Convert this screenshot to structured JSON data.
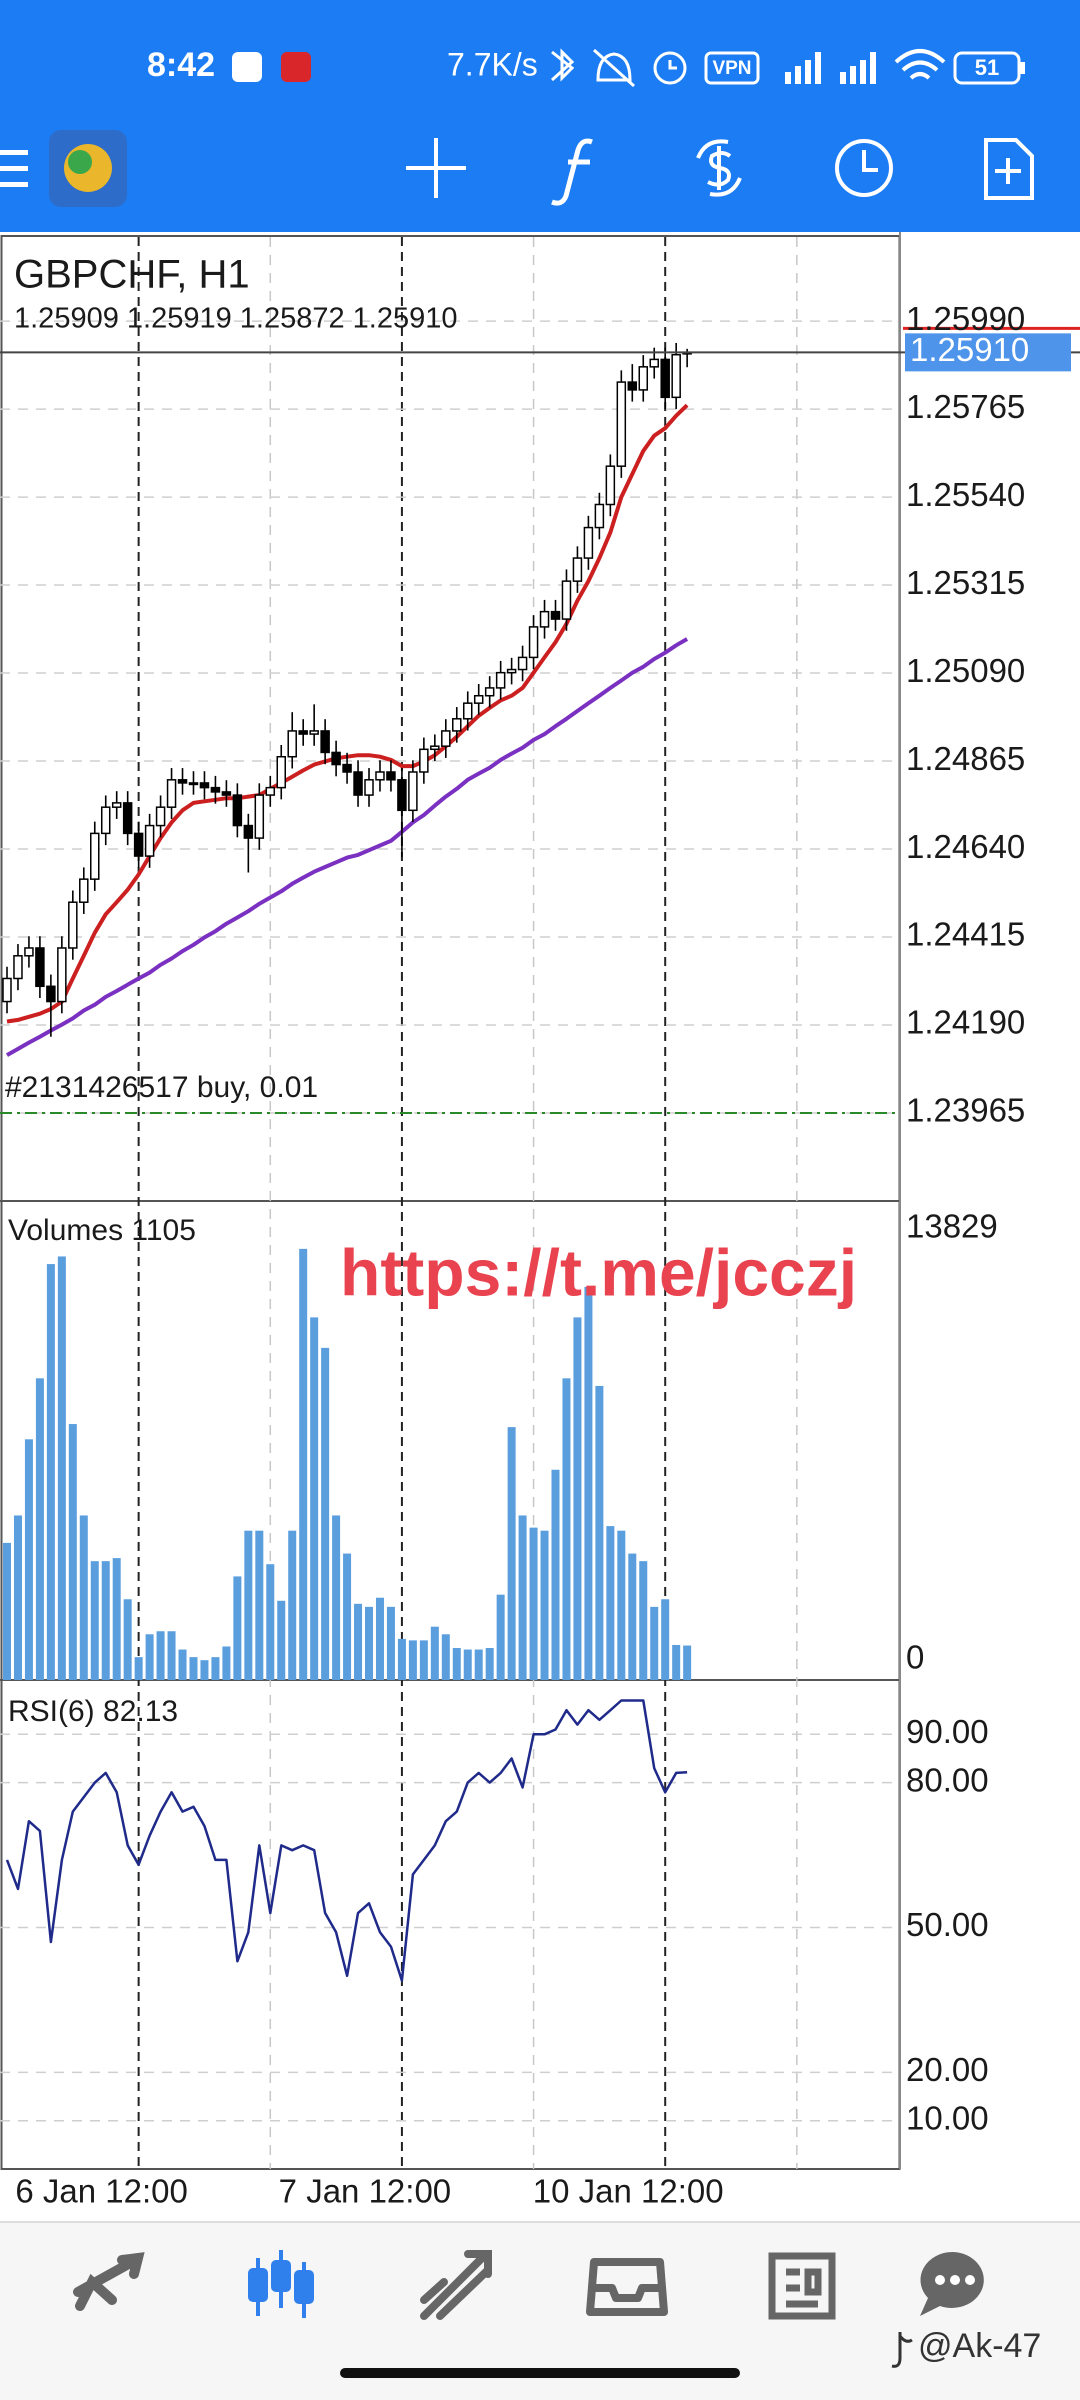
{
  "status_bar": {
    "time": "8:42",
    "network_speed": "7.7K/s",
    "vpn": "VPN",
    "battery": "51"
  },
  "chart": {
    "symbol": "GBPCHF, H1",
    "ohlc": "1.25909 1.25919 1.25872 1.25910",
    "watermark": "https://t.me/jcczj",
    "price_pane": {
      "ylim": [
        1.2374,
        1.26205
      ],
      "yticks": [
        {
          "value": 1.2599,
          "label": "1.25990"
        },
        {
          "value": 1.25765,
          "label": "1.25765"
        },
        {
          "value": 1.2554,
          "label": "1.25540"
        },
        {
          "value": 1.25315,
          "label": "1.25315"
        },
        {
          "value": 1.2509,
          "label": "1.25090"
        },
        {
          "value": 1.24865,
          "label": "1.24865"
        },
        {
          "value": 1.2464,
          "label": "1.24640"
        },
        {
          "value": 1.24415,
          "label": "1.24415"
        },
        {
          "value": 1.2419,
          "label": "1.24190"
        },
        {
          "value": 1.23965,
          "label": "1.23965"
        }
      ],
      "current_price": {
        "value": 1.2591,
        "label": "1.25910"
      },
      "order": {
        "label": "#2131426517 buy, 0.01",
        "price": 1.23965
      },
      "candles": {
        "open": [
          1.2425,
          1.24309,
          1.24367,
          1.24387,
          1.24289,
          1.2425,
          1.24387,
          1.24504,
          1.24563,
          1.2468,
          1.24747,
          1.24758,
          1.2468,
          1.24622,
          1.247,
          1.24747,
          1.24817,
          1.24809,
          1.24809,
          1.24797,
          1.24786,
          1.24778,
          1.247,
          1.24668,
          1.24778,
          1.24797,
          1.24876,
          1.24942,
          1.24934,
          1.24942,
          1.24887,
          1.24856,
          1.24837,
          1.24778,
          1.24817,
          1.24837,
          1.24817,
          1.24739,
          1.24837,
          1.24895,
          1.24903,
          1.24942,
          1.24973,
          1.25013,
          1.25032,
          1.25052,
          1.25091,
          1.25099,
          1.2513,
          1.25208,
          1.25247,
          1.25228,
          1.25325,
          1.25384,
          1.25462,
          1.25521,
          1.25619,
          1.25834,
          1.25814,
          1.25873,
          1.25892,
          1.25795,
          1.25909
        ],
        "high": [
          1.24339,
          1.24397,
          1.24417,
          1.24417,
          1.24319,
          1.24417,
          1.24534,
          1.24593,
          1.2471,
          1.24777,
          1.24788,
          1.24788,
          1.2471,
          1.2473,
          1.24777,
          1.24847,
          1.24847,
          1.24839,
          1.24839,
          1.24827,
          1.24816,
          1.24808,
          1.2473,
          1.24808,
          1.24827,
          1.24906,
          1.2499,
          1.24972,
          1.2501,
          1.24972,
          1.24917,
          1.24886,
          1.24867,
          1.24847,
          1.24867,
          1.24867,
          1.24847,
          1.24867,
          1.24925,
          1.24933,
          1.24972,
          1.25003,
          1.25043,
          1.25062,
          1.25082,
          1.25121,
          1.25129,
          1.2516,
          1.25238,
          1.25277,
          1.25277,
          1.25355,
          1.25414,
          1.25492,
          1.25551,
          1.25649,
          1.25864,
          1.2588,
          1.25903,
          1.25922,
          1.25922,
          1.25934,
          1.25919
        ],
        "low": [
          1.2422,
          1.24279,
          1.24337,
          1.24259,
          1.2416,
          1.2422,
          1.24357,
          1.24474,
          1.24533,
          1.2465,
          1.24717,
          1.2465,
          1.24592,
          1.24592,
          1.2467,
          1.24717,
          1.24779,
          1.24779,
          1.24767,
          1.24756,
          1.24748,
          1.2467,
          1.2458,
          1.24638,
          1.24748,
          1.24767,
          1.24846,
          1.24904,
          1.24904,
          1.24857,
          1.24826,
          1.24807,
          1.24748,
          1.24748,
          1.24787,
          1.24787,
          1.2462,
          1.24709,
          1.24807,
          1.24865,
          1.24873,
          1.24912,
          1.24943,
          1.24983,
          1.25002,
          1.25022,
          1.25061,
          1.25069,
          1.251,
          1.25178,
          1.25198,
          1.25198,
          1.25295,
          1.25354,
          1.25432,
          1.25491,
          1.25589,
          1.25784,
          1.25784,
          1.25843,
          1.25765,
          1.25765,
          1.25872
        ],
        "close": [
          1.24309,
          1.24367,
          1.24387,
          1.24289,
          1.2425,
          1.24387,
          1.24504,
          1.24563,
          1.2468,
          1.24747,
          1.24758,
          1.2468,
          1.24622,
          1.247,
          1.24747,
          1.24817,
          1.24809,
          1.24809,
          1.24797,
          1.24786,
          1.24778,
          1.247,
          1.24668,
          1.24778,
          1.24797,
          1.24876,
          1.24942,
          1.24934,
          1.24942,
          1.24887,
          1.24856,
          1.24837,
          1.24778,
          1.24817,
          1.24837,
          1.24817,
          1.24739,
          1.24837,
          1.24895,
          1.24903,
          1.24942,
          1.24973,
          1.25013,
          1.25032,
          1.25052,
          1.25091,
          1.25099,
          1.2513,
          1.25208,
          1.25247,
          1.25228,
          1.25325,
          1.25384,
          1.25462,
          1.25521,
          1.25619,
          1.25834,
          1.25814,
          1.25873,
          1.25892,
          1.25795,
          1.25904,
          1.2591
        ]
      },
      "ma_fast": {
        "color": "#cc1f1f",
        "values": [
          1.24199,
          1.24203,
          1.24211,
          1.24219,
          1.24231,
          1.2425,
          1.24309,
          1.24367,
          1.24426,
          1.24473,
          1.24504,
          1.24536,
          1.24575,
          1.24622,
          1.24668,
          1.24708,
          1.24739,
          1.24758,
          1.24762,
          1.24766,
          1.2477,
          1.2477,
          1.24774,
          1.24778,
          1.24794,
          1.24809,
          1.24825,
          1.24841,
          1.24856,
          1.24864,
          1.24872,
          1.24876,
          1.2488,
          1.2488,
          1.24876,
          1.24868,
          1.24852,
          1.24852,
          1.24864,
          1.2488,
          1.24903,
          1.24927,
          1.24954,
          1.24981,
          1.25001,
          1.2502,
          1.25032,
          1.25052,
          1.25091,
          1.2513,
          1.25169,
          1.25216,
          1.25275,
          1.25325,
          1.25384,
          1.2545,
          1.2554,
          1.25599,
          1.25658,
          1.25697,
          1.25716,
          1.25748,
          1.25775
        ]
      },
      "ma_slow": {
        "color": "#7a30c0",
        "values": [
          1.24113,
          1.24129,
          1.24145,
          1.2416,
          1.24176,
          1.24191,
          1.24207,
          1.24227,
          1.24242,
          1.24262,
          1.24277,
          1.24293,
          1.24309,
          1.24324,
          1.24344,
          1.2436,
          1.24379,
          1.24395,
          1.24414,
          1.2443,
          1.24449,
          1.24465,
          1.24481,
          1.245,
          1.24516,
          1.24532,
          1.24551,
          1.24567,
          1.24582,
          1.24594,
          1.24606,
          1.24618,
          1.24625,
          1.24637,
          1.24649,
          1.24661,
          1.24684,
          1.24708,
          1.24727,
          1.24751,
          1.24774,
          1.24794,
          1.24817,
          1.24833,
          1.24848,
          1.24868,
          1.24884,
          1.24899,
          1.24919,
          1.24934,
          1.24954,
          1.24973,
          1.24993,
          1.25013,
          1.25032,
          1.25052,
          1.25071,
          1.25091,
          1.25106,
          1.25126,
          1.25142,
          1.25161,
          1.25177
        ]
      }
    },
    "volume_pane": {
      "label": "Volumes 1105",
      "ylim": [
        0,
        15300
      ],
      "yticks": [
        13829,
        0
      ],
      "color": "#5a9ede",
      "values": [
        4398,
        5278,
        7721,
        9676,
        13341,
        13586,
        8210,
        5278,
        3812,
        3812,
        3910,
        2590,
        733,
        1466,
        1564,
        1564,
        977,
        733,
        635,
        733,
        1075,
        3323,
        4789,
        4789,
        3714,
        2541,
        4789,
        13829,
        11631,
        10654,
        5278,
        4056,
        2444,
        2346,
        2639,
        2346,
        1319,
        1271,
        1271,
        1710,
        1466,
        1026,
        977,
        977,
        1026,
        2737,
        8112,
        5278,
        4887,
        4789,
        6744,
        9676,
        11631,
        12608,
        9432,
        4936,
        4789,
        4056,
        3812,
        2346,
        2590,
        1124,
        1105
      ]
    },
    "rsi_pane": {
      "label": "RSI(6) 82.13",
      "ylim": [
        0,
        100
      ],
      "yticks": [
        {
          "value": 90,
          "label": "90.00"
        },
        {
          "value": 80,
          "label": "80.00"
        },
        {
          "value": 50,
          "label": "50.00"
        },
        {
          "value": 20,
          "label": "20.00"
        },
        {
          "value": 10,
          "label": "10.00"
        }
      ],
      "color": "#1f2a8a",
      "values": [
        64,
        58,
        72,
        70,
        47,
        64,
        74,
        77,
        80,
        82,
        78,
        67,
        63,
        69,
        74,
        78,
        74,
        75,
        71,
        64,
        64,
        43,
        49,
        67,
        53,
        67,
        66,
        67,
        66,
        53,
        49,
        40,
        53,
        55,
        49,
        46,
        39,
        61,
        64,
        67,
        72,
        74,
        80,
        82,
        80,
        82,
        85,
        79,
        90,
        90,
        91,
        95,
        92,
        95,
        93,
        95,
        97,
        97,
        97,
        83,
        78,
        82,
        82.13
      ]
    },
    "x_labels": [
      "6 Jan 12:00",
      "7 Jan 12:00",
      "10 Jan 12:00"
    ]
  },
  "footer_watermark": "@Ak-47"
}
